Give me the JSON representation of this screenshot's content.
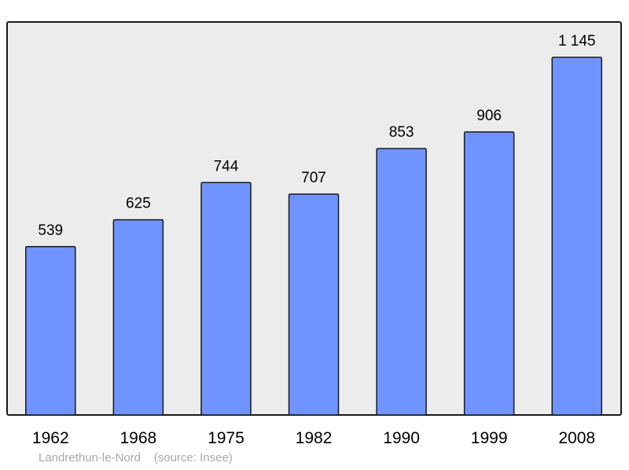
{
  "chart_data": {
    "type": "bar",
    "categories": [
      "1962",
      "1968",
      "1975",
      "1982",
      "1990",
      "1999",
      "2008"
    ],
    "values": [
      539,
      625,
      744,
      707,
      853,
      906,
      1145
    ],
    "value_labels": [
      "539",
      "625",
      "744",
      "707",
      "853",
      "906",
      "1 145"
    ],
    "title": "",
    "xlabel": "",
    "ylabel": "",
    "ylim": [
      0,
      1258
    ],
    "grid": false,
    "colors": {
      "bar": "#7094ff",
      "bar_border": "#1a1a1a",
      "background": "#ececec"
    }
  },
  "footer": {
    "commune": "Landrethun-le-Nord",
    "source": "(source: Insee)"
  }
}
